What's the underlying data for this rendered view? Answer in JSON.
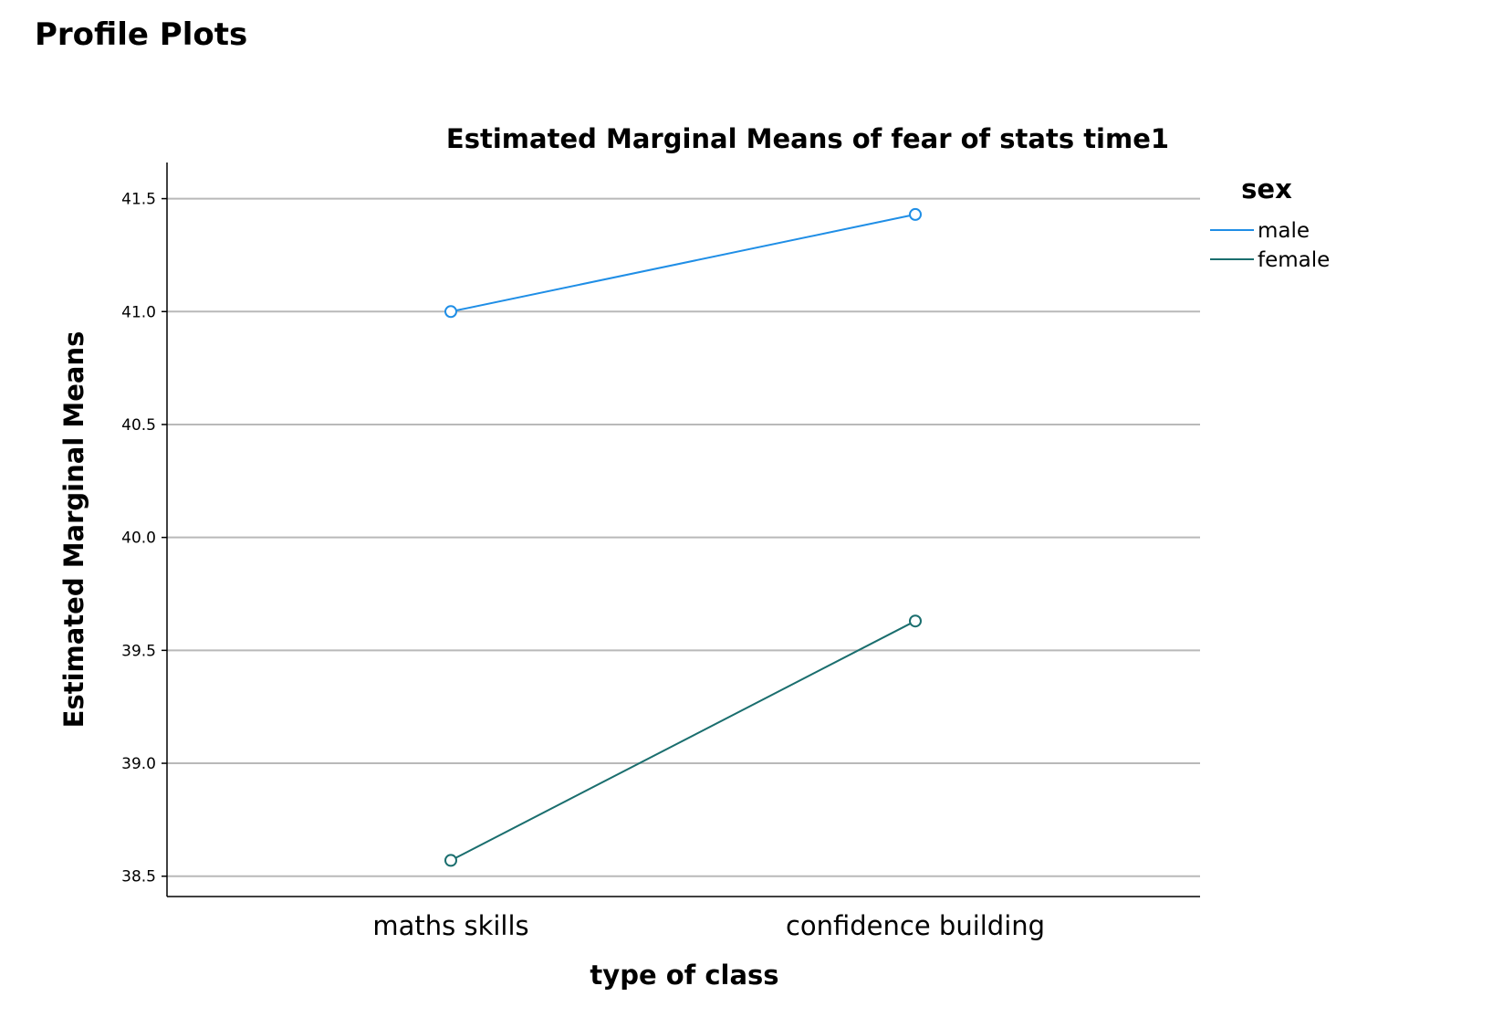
{
  "page": {
    "heading": "Profile Plots"
  },
  "chart_data": {
    "type": "line",
    "title": "Estimated Marginal Means of fear of stats time1",
    "xlabel": "type of class",
    "ylabel": "Estimated Marginal Means",
    "categories": [
      "maths skills",
      "confidence building"
    ],
    "ylim": [
      38.41,
      41.66
    ],
    "yticks": [
      38.5,
      39.0,
      39.5,
      40.0,
      40.5,
      41.0,
      41.5
    ],
    "ytick_labels": [
      "38.5",
      "39.0",
      "39.5",
      "40.0",
      "40.5",
      "41.0",
      "41.5"
    ],
    "grid": true,
    "legend": {
      "title": "sex",
      "placement": "right"
    },
    "series": [
      {
        "name": "male",
        "values": [
          41.0,
          41.43
        ],
        "color": "#1f8ee6",
        "marker": "open-circle"
      },
      {
        "name": "female",
        "values": [
          38.57,
          39.63
        ],
        "color": "#1a6e6e",
        "marker": "open-circle"
      }
    ]
  }
}
